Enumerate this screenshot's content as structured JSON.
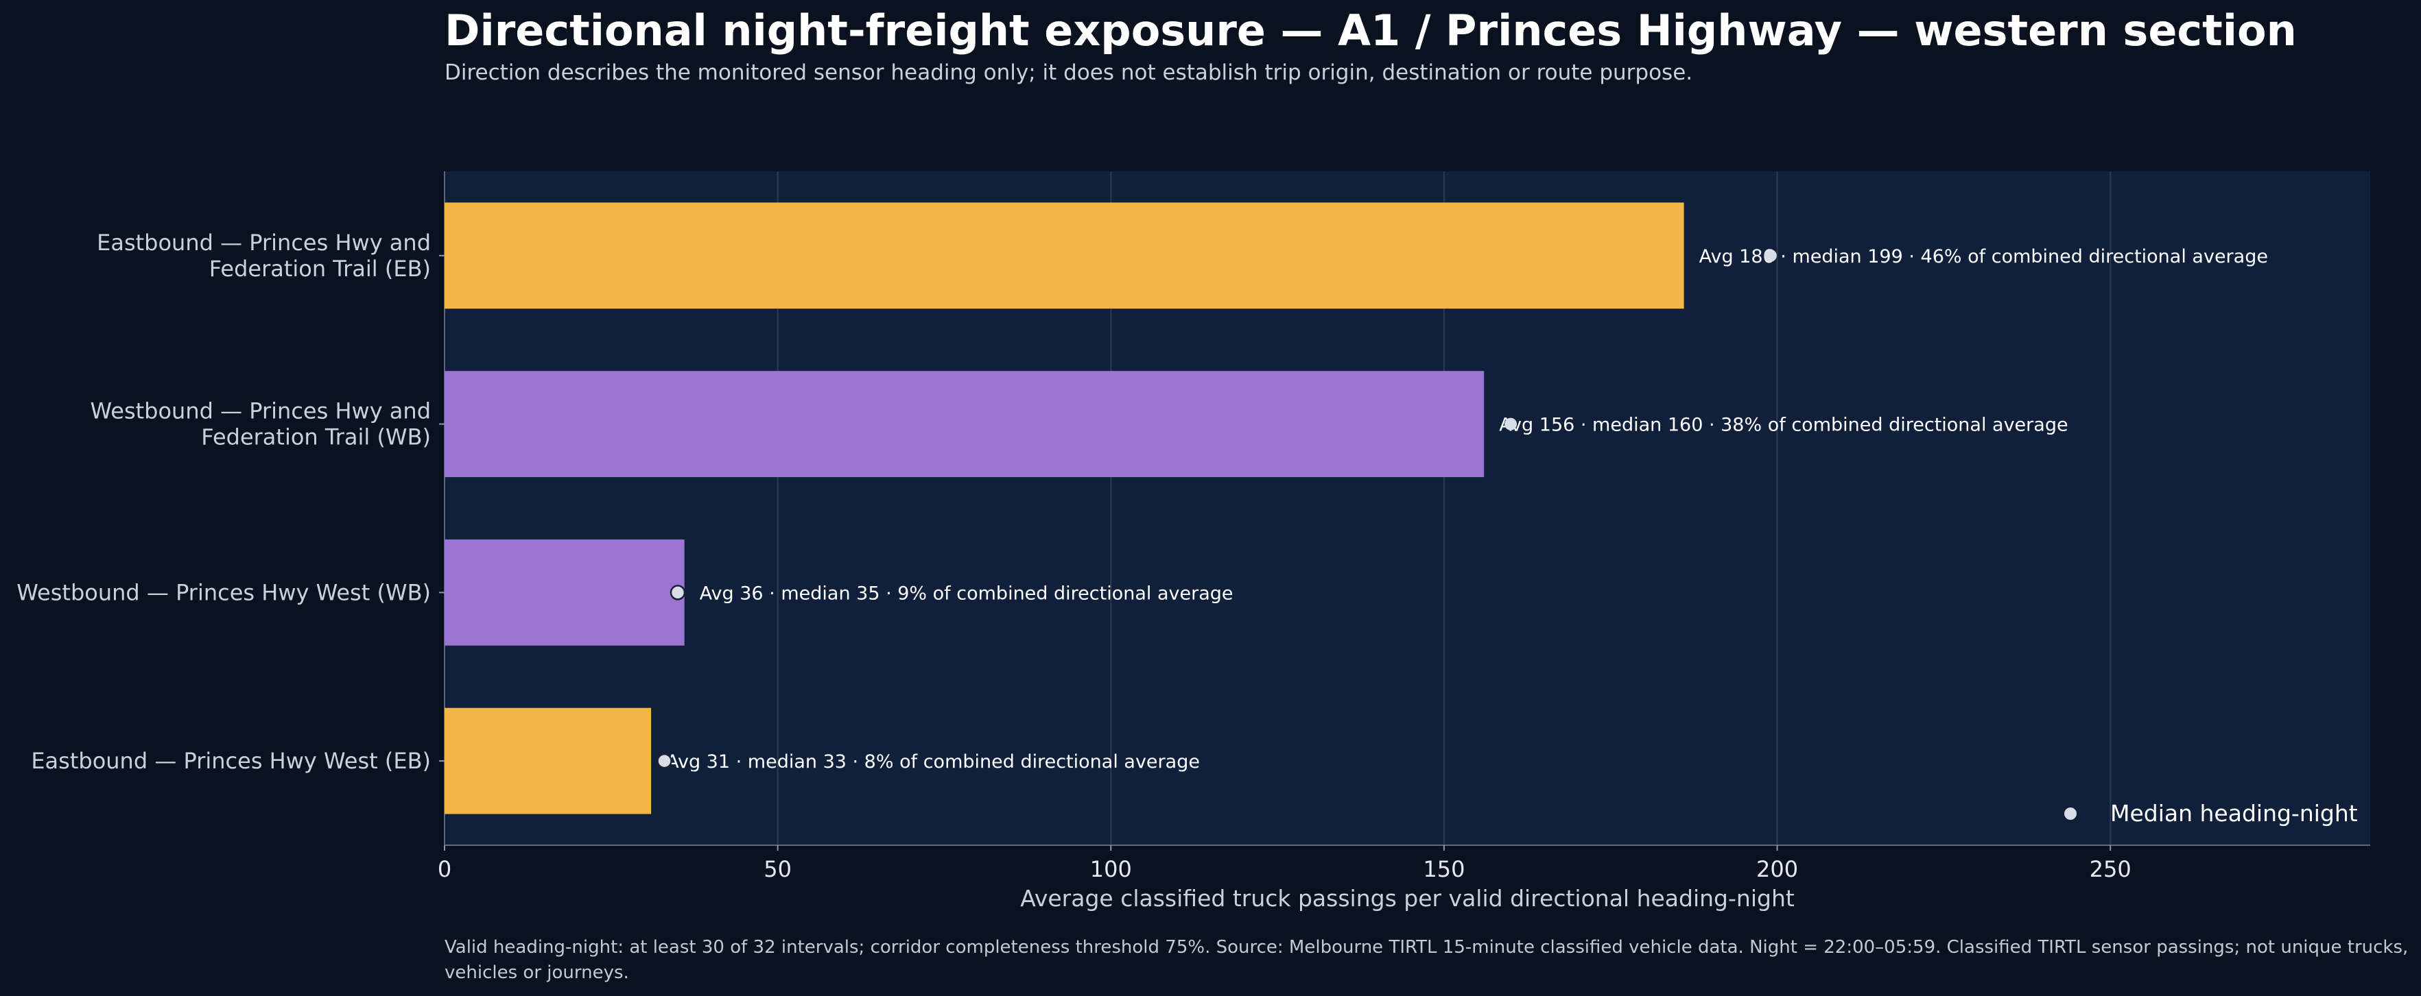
{
  "header": {
    "title": "Directional night-freight exposure — A1 / Princes Highway — western section",
    "subtitle": "Direction describes the monitored sensor heading only; it does not establish trip origin, destination or route purpose."
  },
  "footnote": "Valid heading-night: at least 30 of 32 intervals; corridor completeness threshold 75%. Source: Melbourne TIRTL 15-minute classified vehicle data. Night = 22:00–05:59. Classified TIRTL sensor passings; not unique trucks, vehicles or journeys.",
  "colors": {
    "page_bg": "#0a1220",
    "plot_bg": "#11203a",
    "eastbound": "#f2b845",
    "westbound": "#9b75d1",
    "median_marker": "#d9dee6",
    "grid": "#2a3a55"
  },
  "chart_data": {
    "type": "bar",
    "orientation": "horizontal",
    "categories": [
      [
        "Eastbound — Princes Hwy and",
        "Federation Trail (EB)"
      ],
      [
        "Westbound — Princes Hwy and",
        "Federation Trail (WB)"
      ],
      [
        "Westbound — Princes Hwy West (WB)"
      ],
      [
        "Eastbound — Princes Hwy West (EB)"
      ]
    ],
    "values": [
      186,
      156,
      36,
      31
    ],
    "medians": [
      199,
      160,
      35,
      33
    ],
    "directions": [
      "EB",
      "WB",
      "WB",
      "EB"
    ],
    "data_labels": [
      "Avg 186 · median 199 · 46% of combined directional average",
      "Avg 156 · median 160 · 38% of combined directional average",
      "Avg 36 · median 35 · 9% of combined directional average",
      "Avg 31 · median 33 · 8% of combined directional average"
    ],
    "xlabel": "Average classified truck passings per valid directional heading-night",
    "xlim": [
      0,
      289
    ],
    "xticks": [
      0,
      50,
      100,
      150,
      200,
      250
    ],
    "grid": "vertical",
    "legend": {
      "label": "Median heading-night",
      "position": "bottom-right"
    }
  }
}
